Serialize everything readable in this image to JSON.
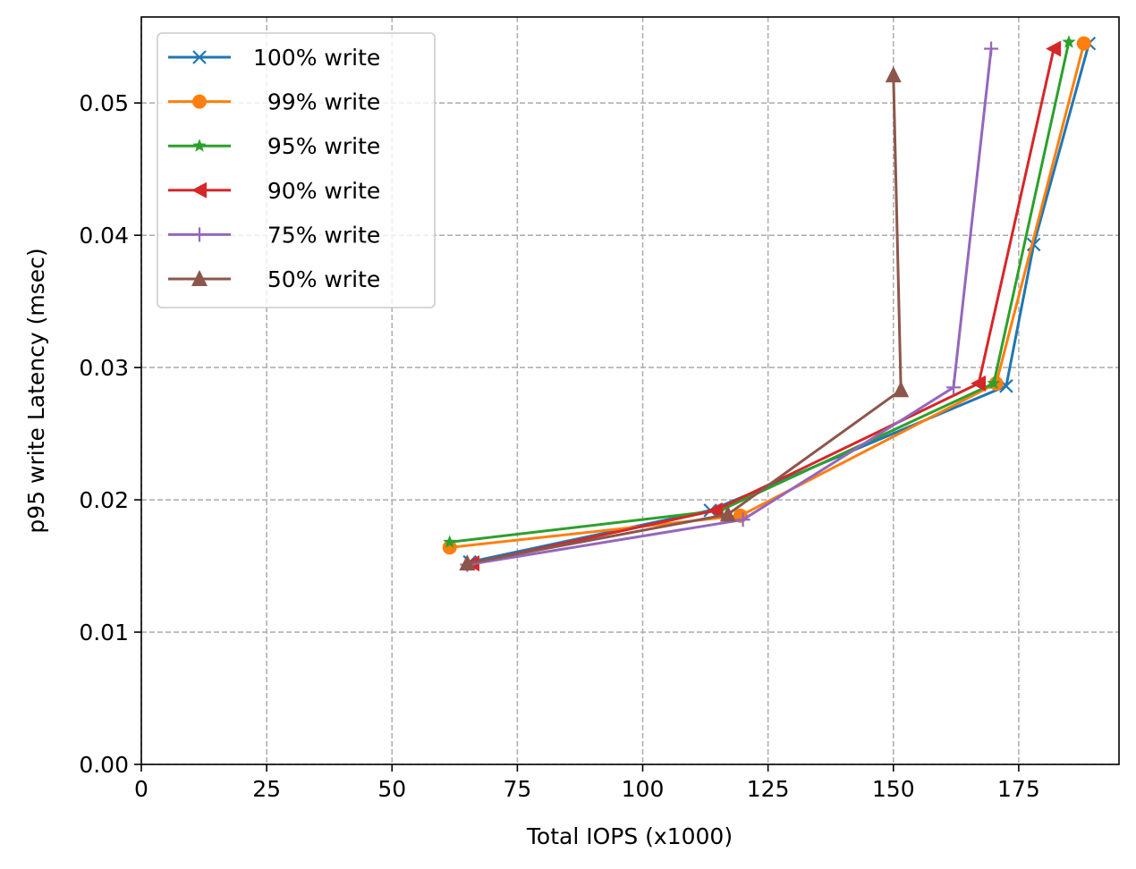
{
  "chart_data": {
    "type": "line",
    "title": "",
    "xlabel": "Total IOPS (x1000)",
    "ylabel": "p95 write Latency (msec)",
    "xlim": [
      0,
      195
    ],
    "ylim": [
      0,
      0.0565
    ],
    "xticks": [
      0,
      25,
      50,
      75,
      100,
      125,
      150,
      175
    ],
    "yticks": [
      0.0,
      0.01,
      0.02,
      0.03,
      0.04,
      0.05
    ],
    "xtick_labels": [
      "0",
      "25",
      "50",
      "75",
      "100",
      "125",
      "150",
      "175"
    ],
    "ytick_labels": [
      "0.00",
      "0.01",
      "0.02",
      "0.03",
      "0.04",
      "0.05"
    ],
    "grid": true,
    "legend_position": "top-left",
    "series": [
      {
        "name": "100% write",
        "color": "#1f77b4",
        "marker": "x",
        "x": [
          65.5,
          113.5,
          172.5,
          178,
          189
        ],
        "y": [
          0.0153,
          0.0192,
          0.0286,
          0.0393,
          0.0545
        ]
      },
      {
        "name": "  99% write",
        "color": "#ff7f0e",
        "marker": "circle",
        "x": [
          61.5,
          119.5,
          170.5,
          188
        ],
        "y": [
          0.0164,
          0.0188,
          0.0288,
          0.0545
        ]
      },
      {
        "name": "  95% write",
        "color": "#2ca02c",
        "marker": "star",
        "x": [
          61.5,
          115.5,
          170,
          185
        ],
        "y": [
          0.0168,
          0.0192,
          0.0288,
          0.0546
        ]
      },
      {
        "name": "  90% write",
        "color": "#d62728",
        "marker": "triangle-left",
        "x": [
          66,
          114.5,
          167,
          182
        ],
        "y": [
          0.0152,
          0.0192,
          0.0288,
          0.0541
        ]
      },
      {
        "name": "  75% write",
        "color": "#9467bd",
        "marker": "plus",
        "x": [
          65,
          120,
          162,
          169.5
        ],
        "y": [
          0.0151,
          0.0185,
          0.0285,
          0.0541
        ]
      },
      {
        "name": "  50% write",
        "color": "#8c564b",
        "marker": "triangle-up",
        "x": [
          65,
          117,
          151.5,
          150
        ],
        "y": [
          0.0152,
          0.0189,
          0.0283,
          0.0521
        ]
      }
    ]
  }
}
